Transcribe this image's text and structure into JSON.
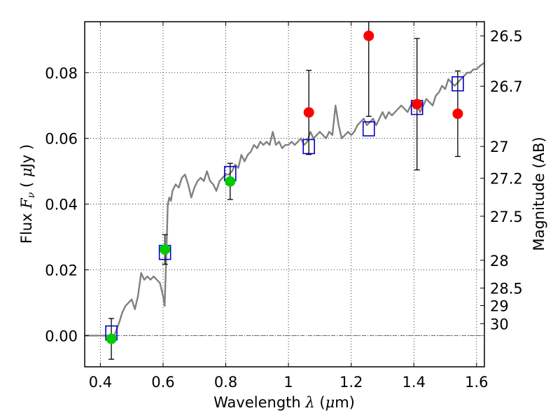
{
  "chart_data": {
    "type": "scatter",
    "xlabel": "Wavelength  λ (μm)",
    "ylabel": "Flux  Fν  ( μJy )",
    "y2label": "Magnitude (AB)",
    "xlim": [
      0.35,
      1.625
    ],
    "ylim": [
      -0.0095,
      0.0955
    ],
    "grid": true,
    "x_ticks": [
      "0.4",
      "0.6",
      "0.8",
      "1",
      "1.2",
      "1.4",
      "1.6"
    ],
    "x_tick_values": [
      0.4,
      0.6,
      0.8,
      1.0,
      1.2,
      1.4,
      1.6
    ],
    "y_ticks": [
      "0.00",
      "0.02",
      "0.04",
      "0.06",
      "0.08"
    ],
    "y_tick_values": [
      0.0,
      0.02,
      0.04,
      0.06,
      0.08
    ],
    "y2_ticks": [
      {
        "label": "26.5",
        "mag": 26.5
      },
      {
        "label": "26.7",
        "mag": 26.7
      },
      {
        "label": "27",
        "mag": 27.0
      },
      {
        "label": "27.2",
        "mag": 27.2
      },
      {
        "label": "27.5",
        "mag": 27.5
      },
      {
        "label": "28",
        "mag": 28.0
      },
      {
        "label": "28.5",
        "mag": 28.5
      },
      {
        "label": "29",
        "mag": 29.0
      },
      {
        "label": "30",
        "mag": 30.0
      }
    ],
    "zero_line": 0.0,
    "model_spectrum": {
      "color": "#808080",
      "x": [
        0.35,
        0.42,
        0.435,
        0.445,
        0.46,
        0.47,
        0.48,
        0.49,
        0.5,
        0.51,
        0.52,
        0.53,
        0.54,
        0.55,
        0.56,
        0.57,
        0.58,
        0.59,
        0.6,
        0.605,
        0.61,
        0.615,
        0.62,
        0.625,
        0.63,
        0.64,
        0.65,
        0.66,
        0.67,
        0.68,
        0.69,
        0.7,
        0.71,
        0.72,
        0.73,
        0.74,
        0.75,
        0.76,
        0.77,
        0.78,
        0.79,
        0.8,
        0.81,
        0.82,
        0.83,
        0.84,
        0.85,
        0.86,
        0.87,
        0.88,
        0.89,
        0.9,
        0.91,
        0.92,
        0.93,
        0.94,
        0.95,
        0.96,
        0.97,
        0.98,
        0.99,
        1.0,
        1.01,
        1.02,
        1.03,
        1.04,
        1.05,
        1.06,
        1.07,
        1.08,
        1.09,
        1.1,
        1.11,
        1.12,
        1.13,
        1.14,
        1.15,
        1.16,
        1.17,
        1.18,
        1.19,
        1.2,
        1.21,
        1.22,
        1.23,
        1.24,
        1.25,
        1.26,
        1.27,
        1.28,
        1.29,
        1.3,
        1.31,
        1.32,
        1.33,
        1.34,
        1.35,
        1.36,
        1.37,
        1.38,
        1.39,
        1.4,
        1.41,
        1.42,
        1.43,
        1.44,
        1.45,
        1.46,
        1.47,
        1.48,
        1.49,
        1.5,
        1.51,
        1.52,
        1.53,
        1.54,
        1.55,
        1.56,
        1.57,
        1.58,
        1.59,
        1.6,
        1.61,
        1.625
      ],
      "y": [
        0.0,
        0.0,
        0.0,
        0.0,
        0.004,
        0.007,
        0.009,
        0.01,
        0.011,
        0.008,
        0.012,
        0.019,
        0.017,
        0.018,
        0.017,
        0.018,
        0.017,
        0.016,
        0.012,
        0.009,
        0.023,
        0.04,
        0.042,
        0.041,
        0.044,
        0.046,
        0.045,
        0.048,
        0.049,
        0.046,
        0.042,
        0.045,
        0.047,
        0.048,
        0.047,
        0.05,
        0.047,
        0.046,
        0.044,
        0.047,
        0.048,
        0.049,
        0.049,
        0.05,
        0.052,
        0.051,
        0.055,
        0.053,
        0.055,
        0.056,
        0.058,
        0.057,
        0.059,
        0.058,
        0.059,
        0.058,
        0.062,
        0.058,
        0.059,
        0.057,
        0.058,
        0.058,
        0.059,
        0.058,
        0.059,
        0.06,
        0.058,
        0.059,
        0.062,
        0.06,
        0.061,
        0.062,
        0.061,
        0.06,
        0.062,
        0.061,
        0.07,
        0.064,
        0.06,
        0.061,
        0.062,
        0.061,
        0.062,
        0.064,
        0.065,
        0.066,
        0.064,
        0.065,
        0.066,
        0.064,
        0.066,
        0.068,
        0.066,
        0.068,
        0.067,
        0.068,
        0.069,
        0.07,
        0.069,
        0.068,
        0.07,
        0.071,
        0.07,
        0.068,
        0.07,
        0.072,
        0.071,
        0.07,
        0.073,
        0.074,
        0.076,
        0.075,
        0.078,
        0.077,
        0.076,
        0.077,
        0.078,
        0.079,
        0.08,
        0.08,
        0.081,
        0.081,
        0.082,
        0.083
      ]
    },
    "model_photometry": {
      "marker": "open-square",
      "color": "#0000cc",
      "x": [
        0.435,
        0.606,
        0.814,
        1.065,
        1.256,
        1.41,
        1.54
      ],
      "y": [
        0.0008,
        0.0253,
        0.0493,
        0.0575,
        0.0629,
        0.0694,
        0.0766
      ]
    },
    "green_points": {
      "marker": "filled-circle",
      "color": "#00cc00",
      "x": [
        0.435,
        0.606,
        0.814
      ],
      "y": [
        -0.001,
        0.0262,
        0.0469
      ],
      "err": [
        0.0062,
        0.0045,
        0.0055
      ]
    },
    "red_points": {
      "marker": "filled-circle",
      "color": "#ff0000",
      "x": [
        1.065,
        1.256,
        1.41,
        1.54
      ],
      "y": [
        0.0679,
        0.0912,
        0.0704,
        0.0675
      ],
      "err": [
        0.0128,
        0.0245,
        0.02,
        0.013
      ]
    }
  }
}
